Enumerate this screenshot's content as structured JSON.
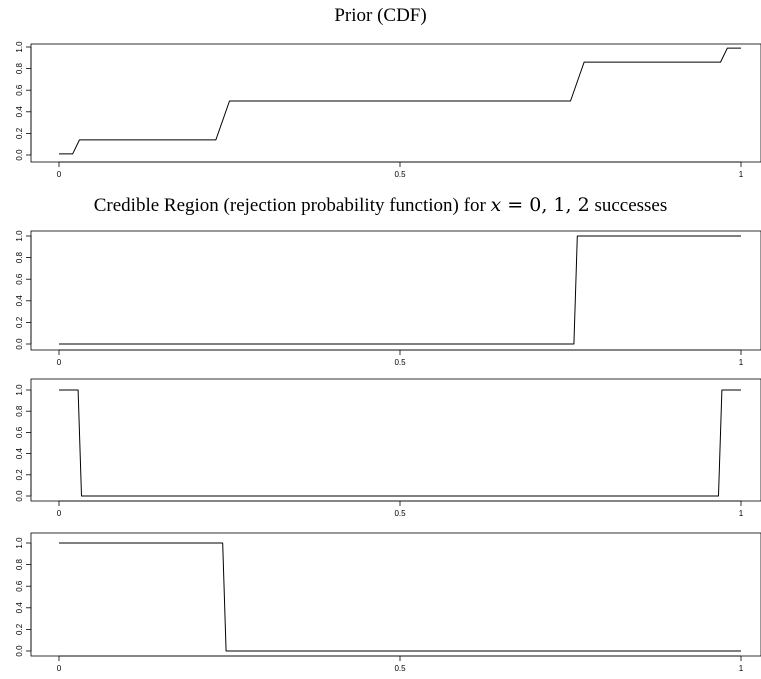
{
  "titles": {
    "prior": "Prior (CDF)",
    "region_prefix": "Credible Region (rejection probability function) for ",
    "region_var": "x",
    "region_values": " = 0, 1, 2",
    "region_suffix": " successes"
  },
  "chart_data": [
    {
      "type": "line",
      "title": "Prior (CDF)",
      "xlim": [
        0,
        1
      ],
      "ylim": [
        0,
        1
      ],
      "x_ticks": [
        "0",
        "0.5",
        "1"
      ],
      "y_ticks": [
        "0.0",
        "0.2",
        "0.4",
        "0.6",
        "0.8",
        "1.0"
      ],
      "grid": false,
      "series": [
        {
          "points": [
            [
              0,
              0.01
            ],
            [
              0.02,
              0.01
            ],
            [
              0.03,
              0.14
            ],
            [
              0.23,
              0.14
            ],
            [
              0.25,
              0.5
            ],
            [
              0.75,
              0.5
            ],
            [
              0.77,
              0.86
            ],
            [
              0.97,
              0.86
            ],
            [
              0.98,
              0.99
            ],
            [
              1.0,
              0.99
            ]
          ]
        }
      ]
    },
    {
      "type": "line",
      "title": "",
      "xlim": [
        0,
        1
      ],
      "ylim": [
        0,
        1
      ],
      "x_ticks": [
        "0",
        "0.5",
        "1"
      ],
      "y_ticks": [
        "0.0",
        "0.2",
        "0.4",
        "0.6",
        "0.8",
        "1.0"
      ],
      "grid": false,
      "series": [
        {
          "points": [
            [
              0,
              0
            ],
            [
              0.755,
              0
            ],
            [
              0.76,
              1
            ],
            [
              1.0,
              1
            ]
          ]
        }
      ]
    },
    {
      "type": "line",
      "title": "",
      "xlim": [
        0,
        1
      ],
      "ylim": [
        0,
        1
      ],
      "x_ticks": [
        "0",
        "0.5",
        "1"
      ],
      "y_ticks": [
        "0.0",
        "0.2",
        "0.4",
        "0.6",
        "0.8",
        "1.0"
      ],
      "grid": false,
      "series": [
        {
          "points": [
            [
              0,
              1
            ],
            [
              0.028,
              1
            ],
            [
              0.033,
              0
            ],
            [
              0.967,
              0
            ],
            [
              0.972,
              1
            ],
            [
              1.0,
              1
            ]
          ]
        }
      ]
    },
    {
      "type": "line",
      "title": "",
      "xlim": [
        0,
        1
      ],
      "ylim": [
        0,
        1
      ],
      "x_ticks": [
        "0",
        "0.5",
        "1"
      ],
      "y_ticks": [
        "0.0",
        "0.2",
        "0.4",
        "0.6",
        "0.8",
        "1.0"
      ],
      "grid": false,
      "series": [
        {
          "points": [
            [
              0,
              1
            ],
            [
              0.24,
              1
            ],
            [
              0.245,
              0
            ],
            [
              1.0,
              0
            ]
          ]
        }
      ]
    }
  ]
}
